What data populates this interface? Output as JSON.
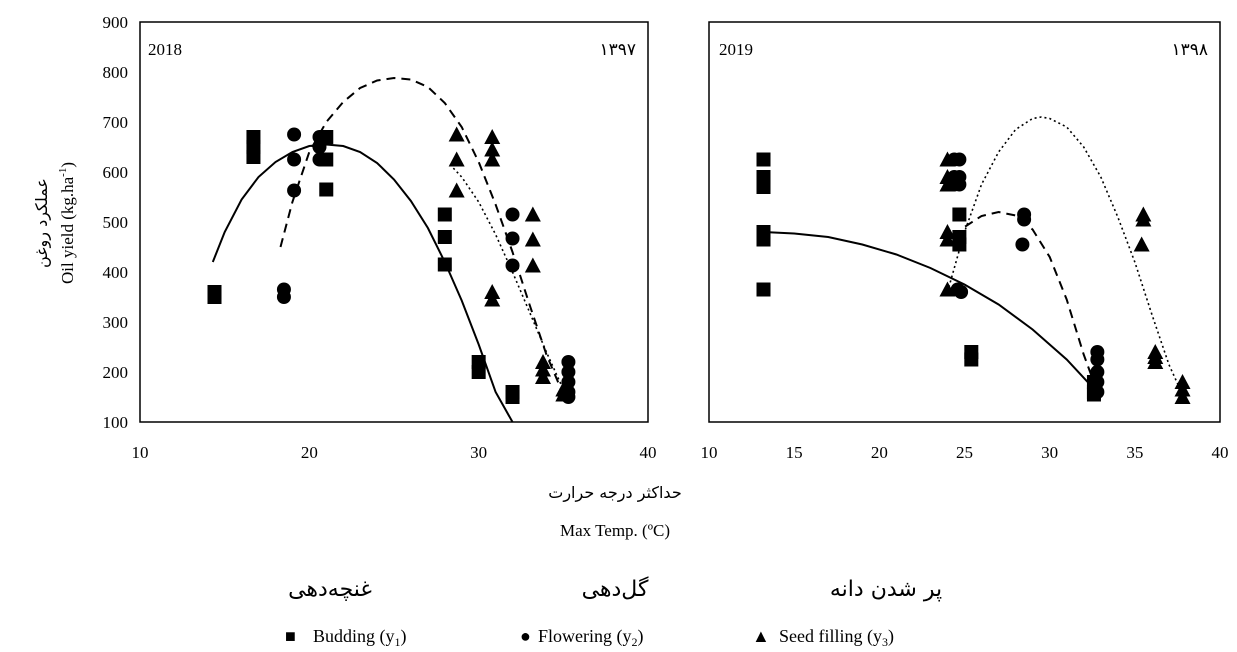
{
  "chart_data": [
    {
      "type": "scatter",
      "panel_label": "2018",
      "panel_label_fa": "۱۳۹۷",
      "xlim": [
        10,
        40
      ],
      "ylim": [
        100,
        900
      ],
      "xticks": [
        "10",
        "20",
        "30",
        "40"
      ],
      "yticks": [
        "100",
        "200",
        "300",
        "400",
        "500",
        "600",
        "700",
        "800",
        "900"
      ],
      "series": [
        {
          "name": "Budding (y1)",
          "marker": "square",
          "points": [
            [
              14.4,
              360
            ],
            [
              14.4,
              350
            ],
            [
              16.7,
              670
            ],
            [
              16.7,
              650
            ],
            [
              16.7,
              630
            ],
            [
              21,
              670
            ],
            [
              21,
              625
            ],
            [
              21,
              565
            ],
            [
              28,
              515
            ],
            [
              28,
              470
            ],
            [
              28,
              415
            ],
            [
              30,
              220
            ],
            [
              30,
              200
            ],
            [
              32,
              160
            ],
            [
              32,
              150
            ]
          ],
          "fit": {
            "style": "solid",
            "x": [
              14.3,
              15,
              16,
              17,
              18,
              19,
              20,
              21,
              22,
              23,
              24,
              25,
              26,
              27,
              28,
              29,
              30,
              31,
              32
            ],
            "y": [
              420,
              480,
              545,
              590,
              620,
              640,
              652,
              655,
              652,
              640,
              618,
              585,
              542,
              488,
              420,
              343,
              255,
              160,
              100
            ]
          }
        },
        {
          "name": "Flowering (y2)",
          "marker": "circle",
          "points": [
            [
              18.5,
              365
            ],
            [
              18.5,
              350
            ],
            [
              19.1,
              675
            ],
            [
              19.1,
              625
            ],
            [
              19.1,
              563
            ],
            [
              20.6,
              670
            ],
            [
              20.6,
              650
            ],
            [
              20.6,
              625
            ],
            [
              32,
              515
            ],
            [
              32,
              467
            ],
            [
              32,
              413
            ],
            [
              35.3,
              220
            ],
            [
              35.3,
              200
            ],
            [
              35.3,
              180
            ],
            [
              35.3,
              160
            ],
            [
              35.3,
              150
            ]
          ],
          "fit": {
            "style": "dashed",
            "x": [
              18.3,
              19,
              20,
              21,
              22,
              23,
              24,
              25,
              26,
              27,
              28,
              29,
              30,
              31,
              32,
              33,
              34,
              35
            ],
            "y": [
              450,
              540,
              640,
              700,
              740,
              768,
              783,
              788,
              785,
              770,
              738,
              690,
              620,
              535,
              440,
              335,
              235,
              155
            ]
          }
        },
        {
          "name": "Seed filling (y3)",
          "marker": "triangle",
          "points": [
            [
              28.7,
              675
            ],
            [
              28.7,
              625
            ],
            [
              28.7,
              563
            ],
            [
              30.8,
              670
            ],
            [
              30.8,
              645
            ],
            [
              30.8,
              625
            ],
            [
              30.8,
              360
            ],
            [
              30.8,
              345
            ],
            [
              33.2,
              515
            ],
            [
              33.2,
              465
            ],
            [
              33.2,
              413
            ],
            [
              33.8,
              220
            ],
            [
              33.8,
              205
            ],
            [
              33.8,
              190
            ],
            [
              35,
              165
            ],
            [
              35,
              155
            ]
          ],
          "fit": {
            "style": "dotted",
            "x": [
              28.3,
              29,
              30,
              31,
              32,
              33,
              34,
              35.2
            ],
            "y": [
              615,
              590,
              540,
              475,
              400,
              320,
              240,
              150
            ]
          }
        }
      ]
    },
    {
      "type": "scatter",
      "panel_label": "2019",
      "panel_label_fa": "۱۳۹۸",
      "xlim": [
        10,
        40
      ],
      "ylim": [
        100,
        900
      ],
      "xticks": [
        "10",
        "15",
        "20",
        "25",
        "30",
        "35",
        "40"
      ],
      "yticks": [
        "100",
        "200",
        "300",
        "400",
        "500",
        "600",
        "700",
        "800",
        "900"
      ],
      "series": [
        {
          "name": "Budding (y1)",
          "marker": "square",
          "points": [
            [
              13.2,
              625
            ],
            [
              13.2,
              590
            ],
            [
              13.2,
              570
            ],
            [
              13.2,
              480
            ],
            [
              13.2,
              465
            ],
            [
              13.2,
              365
            ],
            [
              24.7,
              515
            ],
            [
              24.7,
              470
            ],
            [
              24.7,
              455
            ],
            [
              25.4,
              240
            ],
            [
              25.4,
              225
            ],
            [
              32.6,
              180
            ],
            [
              32.6,
              160
            ],
            [
              32.6,
              155
            ]
          ],
          "fit": {
            "style": "solid",
            "x": [
              13.2,
              15,
              17,
              19,
              21,
              23,
              25,
              27,
              29,
              31,
              32.5
            ],
            "y": [
              480,
              477,
              470,
              455,
              435,
              408,
              375,
              335,
              285,
              225,
              170
            ]
          }
        },
        {
          "name": "Flowering (y2)",
          "marker": "circle",
          "points": [
            [
              24.4,
              625
            ],
            [
              24.4,
              590
            ],
            [
              24.4,
              575
            ],
            [
              24.6,
              365
            ],
            [
              24.7,
              625
            ],
            [
              24.7,
              590
            ],
            [
              24.7,
              575
            ],
            [
              24.8,
              360
            ],
            [
              28.5,
              515
            ],
            [
              28.5,
              505
            ],
            [
              28.4,
              455
            ],
            [
              32.8,
              240
            ],
            [
              32.8,
              225
            ],
            [
              32.8,
              200
            ],
            [
              32.8,
              180
            ],
            [
              32.8,
              160
            ]
          ],
          "fit": {
            "style": "dashed",
            "x": [
              24.4,
              25,
              26,
              27,
              28,
              29,
              30,
              31,
              32,
              32.8
            ],
            "y": [
              470,
              490,
              512,
              520,
              513,
              485,
              430,
              345,
              235,
              160
            ]
          }
        },
        {
          "name": "Seed filling (y3)",
          "marker": "triangle",
          "points": [
            [
              24,
              625
            ],
            [
              24,
              590
            ],
            [
              24,
              575
            ],
            [
              24,
              480
            ],
            [
              24,
              465
            ],
            [
              24,
              365
            ],
            [
              35.5,
              515
            ],
            [
              35.5,
              505
            ],
            [
              35.4,
              455
            ],
            [
              36.2,
              240
            ],
            [
              36.2,
              230
            ],
            [
              36.2,
              220
            ],
            [
              37.8,
              180
            ],
            [
              37.8,
              165
            ],
            [
              37.8,
              150
            ]
          ],
          "fit": {
            "style": "dotted",
            "x": [
              24,
              25,
              26,
              27,
              28,
              29,
              29.5,
              30,
              31,
              32,
              33,
              34,
              35,
              36,
              37,
              37.8
            ],
            "y": [
              360,
              480,
              575,
              640,
              685,
              707,
              710,
              707,
              690,
              650,
              590,
              510,
              420,
              315,
              215,
              155
            ]
          }
        }
      ]
    }
  ],
  "axis": {
    "ylabel_en": "Oil yield (kg.ha",
    "ylabel_en_sup": "-1",
    "ylabel_en_end": ")",
    "ylabel_fa": "عملکرد روغن",
    "xlabel_fa": "حداکثر درجه حرارت",
    "xlabel_en": "Max Temp. (ºC)"
  },
  "legend": {
    "fa": [
      "غنچه‌دهی",
      "گل‌دهی",
      "پر شدن دانه"
    ],
    "items": [
      {
        "symbol": "■",
        "label": "Budding (y",
        "sub": "1",
        "end": ")"
      },
      {
        "symbol": "●",
        "label": "Flowering (y",
        "sub": "2",
        "end": ")"
      },
      {
        "symbol": "▲",
        "label": "Seed filling (y",
        "sub": "3",
        "end": ")"
      }
    ]
  }
}
